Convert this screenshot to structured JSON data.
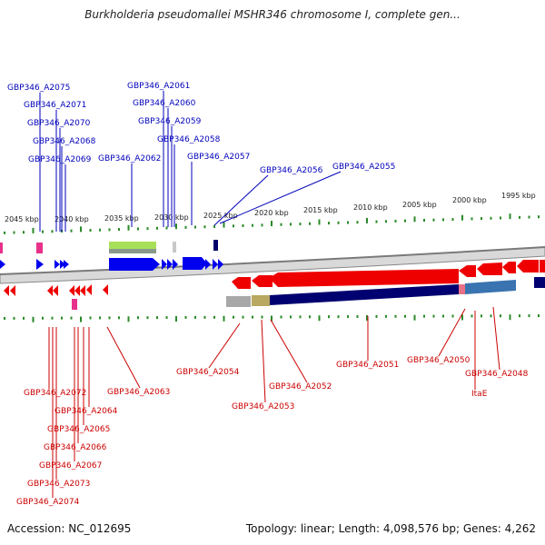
{
  "title": "Burkholderia pseudomallei MSHR346 chromosome I, complete gen...",
  "accession_text": "Accession: NC_012695",
  "summary_text": "Topology: linear; Length: 4,098,576 bp; Genes: 4,262",
  "colors": {
    "forward_label": "#0000bb",
    "reverse_label": "#cc0000",
    "tick": "#2a8a2a"
  },
  "scale_labels": [
    "2045 kbp",
    "2040 kbp",
    "2035 kbp",
    "2030 kbp",
    "2025 kbp",
    "2020 kbp",
    "2015 kbp",
    "2010 kbp",
    "2005 kbp",
    "2000 kbp",
    "1995 kbp"
  ],
  "forward_genes": [
    "GBP346_A2075",
    "GBP346_A2071",
    "GBP346_A2070",
    "GBP346_A2068",
    "GBP346_A2069",
    "GBP346_A2061",
    "GBP346_A2060",
    "GBP346_A2059",
    "GBP346_A2058",
    "GBP346_A2062",
    "GBP346_A2057",
    "GBP346_A2056",
    "GBP346_A2055"
  ],
  "reverse_genes": [
    "GBP346_A2054",
    "GBP346_A2053",
    "GBP346_A2052",
    "GBP346_A2051",
    "GBP346_A2050",
    "GBP346_A2048",
    "ItaE",
    "GBP346_A2063",
    "GBP346_A2072",
    "GBP346_A2064",
    "GBP346_A2065",
    "GBP346_A2066",
    "GBP346_A2067",
    "GBP346_A2073",
    "GBP346_A2074"
  ]
}
